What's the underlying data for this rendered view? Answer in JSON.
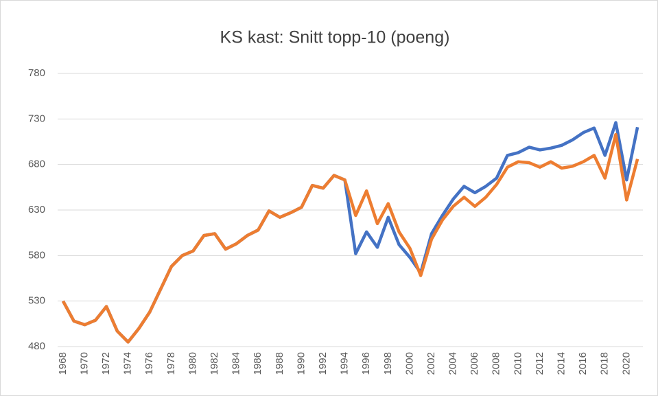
{
  "chart_data": {
    "type": "line",
    "title": "KS kast: Snitt topp-10 (poeng)",
    "x": [
      1968,
      1969,
      1970,
      1971,
      1972,
      1973,
      1974,
      1975,
      1976,
      1977,
      1978,
      1979,
      1980,
      1981,
      1982,
      1983,
      1984,
      1985,
      1986,
      1987,
      1988,
      1989,
      1990,
      1991,
      1992,
      1993,
      1994,
      1995,
      1996,
      1997,
      1998,
      1999,
      2000,
      2001,
      2002,
      2003,
      2004,
      2005,
      2006,
      2007,
      2008,
      2009,
      2010,
      2011,
      2012,
      2013,
      2014,
      2015,
      2016,
      2017,
      2018,
      2019,
      2020,
      2021
    ],
    "series": [
      {
        "color": "#4472c4",
        "values": [
          530,
          508,
          504,
          509,
          524,
          497,
          485,
          500,
          518,
          543,
          568,
          580,
          585,
          602,
          604,
          587,
          593,
          602,
          608,
          629,
          622,
          627,
          633,
          657,
          654,
          668,
          663,
          582,
          606,
          589,
          622,
          592,
          578,
          561,
          604,
          624,
          642,
          656,
          649,
          656,
          665,
          690,
          693,
          699,
          696,
          698,
          701,
          707,
          715,
          720,
          690,
          726,
          663,
          721
        ]
      },
      {
        "color": "#ed7d31",
        "values": [
          530,
          508,
          504,
          509,
          524,
          497,
          485,
          500,
          518,
          543,
          568,
          580,
          585,
          602,
          604,
          587,
          593,
          602,
          608,
          629,
          622,
          627,
          633,
          657,
          654,
          668,
          663,
          624,
          651,
          615,
          637,
          606,
          588,
          558,
          598,
          619,
          634,
          644,
          634,
          644,
          658,
          677,
          683,
          682,
          677,
          683,
          676,
          678,
          683,
          690,
          665,
          713,
          641,
          686
        ]
      }
    ],
    "xlim": [
      1967.5,
      2021.5
    ],
    "xticks": [
      1968,
      1970,
      1972,
      1974,
      1976,
      1978,
      1980,
      1982,
      1984,
      1986,
      1988,
      1990,
      1992,
      1994,
      1996,
      1998,
      2000,
      2002,
      2004,
      2006,
      2008,
      2010,
      2012,
      2014,
      2016,
      2018,
      2020
    ],
    "ylim": [
      480,
      780
    ],
    "yticks": [
      480,
      530,
      580,
      630,
      680,
      730,
      780
    ],
    "grid": true
  }
}
